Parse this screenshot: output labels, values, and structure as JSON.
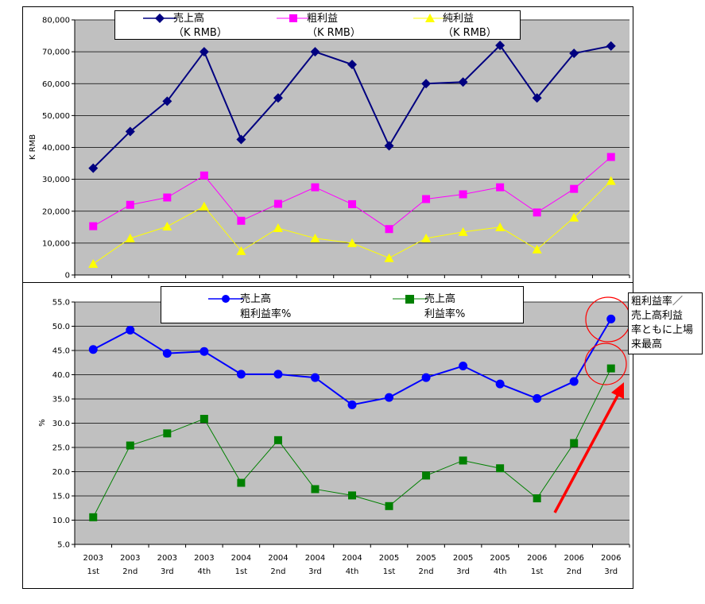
{
  "chart_data": [
    {
      "type": "line",
      "ylabel": "K RMB",
      "ylim": [
        0,
        80000
      ],
      "yticks": [
        "0",
        "10,000",
        "20,000",
        "30,000",
        "40,000",
        "50,000",
        "60,000",
        "70,000",
        "80,000"
      ],
      "grid": true,
      "legend": "top",
      "series": [
        {
          "name": "売上高",
          "unit": "（K RMB）",
          "color": "#000080",
          "marker": "diamond",
          "values": [
            33500,
            45000,
            54500,
            70000,
            42500,
            55500,
            70000,
            66000,
            40500,
            60000,
            60500,
            72000,
            55500,
            69500,
            71800
          ]
        },
        {
          "name": "粗利益",
          "unit": "（K RMB）",
          "color": "#ff00ff",
          "marker": "square",
          "values": [
            15300,
            22000,
            24300,
            31200,
            17000,
            22300,
            27500,
            22200,
            14400,
            23800,
            25300,
            27500,
            19600,
            27000,
            37000
          ]
        },
        {
          "name": "純利益",
          "unit": "（K RMB）",
          "color": "#ffff00",
          "marker": "triangle",
          "values": [
            3500,
            11500,
            15200,
            21500,
            7500,
            14700,
            11500,
            10000,
            5300,
            11500,
            13500,
            15000,
            8000,
            18000,
            29500
          ]
        }
      ]
    },
    {
      "type": "line",
      "ylabel": "%",
      "ylim": [
        5,
        55
      ],
      "yticks": [
        "5.0",
        "10.0",
        "15.0",
        "20.0",
        "25.0",
        "30.0",
        "35.0",
        "40.0",
        "45.0",
        "50.0",
        "55.0"
      ],
      "grid": true,
      "legend": "top",
      "categories": [
        {
          "year": "2003",
          "q": "1st"
        },
        {
          "year": "2003",
          "q": "2nd"
        },
        {
          "year": "2003",
          "q": "3rd"
        },
        {
          "year": "2003",
          "q": "4th"
        },
        {
          "year": "2004",
          "q": "1st"
        },
        {
          "year": "2004",
          "q": "2nd"
        },
        {
          "year": "2004",
          "q": "3rd"
        },
        {
          "year": "2004",
          "q": "4th"
        },
        {
          "year": "2005",
          "q": "1st"
        },
        {
          "year": "2005",
          "q": "2nd"
        },
        {
          "year": "2005",
          "q": "3rd"
        },
        {
          "year": "2005",
          "q": "4th"
        },
        {
          "year": "2006",
          "q": "1st"
        },
        {
          "year": "2006",
          "q": "2nd"
        },
        {
          "year": "2006",
          "q": "3rd"
        }
      ],
      "series": [
        {
          "name": "売上高",
          "name2": "粗利益率%",
          "color": "#0000ff",
          "marker": "circle",
          "values": [
            45.2,
            49.2,
            44.4,
            44.8,
            40.1,
            40.1,
            39.4,
            33.8,
            35.3,
            39.4,
            41.8,
            38.1,
            35.1,
            38.6,
            51.5
          ]
        },
        {
          "name": "売上高",
          "name2": "利益率%",
          "color": "#008000",
          "marker": "square",
          "values": [
            10.6,
            25.4,
            27.9,
            30.9,
            17.7,
            26.5,
            16.4,
            15.1,
            12.9,
            19.2,
            22.3,
            20.7,
            14.5,
            25.9,
            41.3
          ]
        }
      ]
    }
  ],
  "annotation": {
    "lines": [
      "粗利益率／",
      "売上高利益",
      "率ともに上場",
      "来最高"
    ],
    "highlight_color": "#ff0000"
  }
}
